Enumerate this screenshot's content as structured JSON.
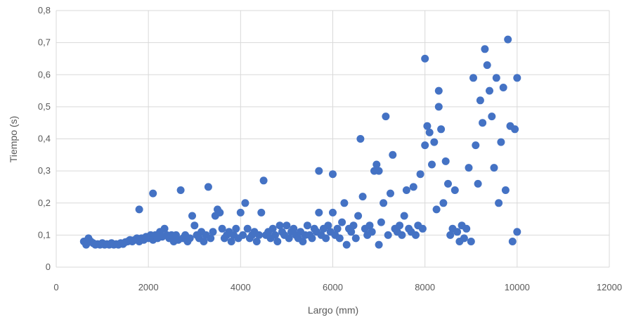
{
  "chart_data": {
    "type": "scatter",
    "title": "",
    "xlabel": "Largo (mm)",
    "ylabel": "Tiempo (s)",
    "xlim": [
      0,
      12000
    ],
    "ylim": [
      0,
      0.8
    ],
    "x_ticks": [
      "0",
      "2000",
      "4000",
      "6000",
      "8000",
      "10000",
      "12000"
    ],
    "y_ticks": [
      "0",
      "0,1",
      "0,2",
      "0,3",
      "0,4",
      "0,5",
      "0,6",
      "0,7",
      "0,8"
    ],
    "grid": "vertical-and-horizontal",
    "legend": "none",
    "marker_color": "#4472c4",
    "series": [
      {
        "points": [
          [
            600,
            0.08
          ],
          [
            650,
            0.07
          ],
          [
            700,
            0.09
          ],
          [
            750,
            0.08
          ],
          [
            800,
            0.075
          ],
          [
            850,
            0.07
          ],
          [
            900,
            0.072
          ],
          [
            950,
            0.07
          ],
          [
            1000,
            0.075
          ],
          [
            1050,
            0.07
          ],
          [
            1100,
            0.072
          ],
          [
            1150,
            0.07
          ],
          [
            1200,
            0.075
          ],
          [
            1250,
            0.07
          ],
          [
            1300,
            0.072
          ],
          [
            1350,
            0.07
          ],
          [
            1400,
            0.075
          ],
          [
            1450,
            0.072
          ],
          [
            1500,
            0.078
          ],
          [
            1550,
            0.08
          ],
          [
            1600,
            0.085
          ],
          [
            1650,
            0.08
          ],
          [
            1700,
            0.085
          ],
          [
            1750,
            0.09
          ],
          [
            1800,
            0.08
          ],
          [
            1800,
            0.18
          ],
          [
            1850,
            0.09
          ],
          [
            1900,
            0.085
          ],
          [
            1950,
            0.095
          ],
          [
            2000,
            0.09
          ],
          [
            2050,
            0.1
          ],
          [
            2100,
            0.085
          ],
          [
            2100,
            0.23
          ],
          [
            2150,
            0.1
          ],
          [
            2200,
            0.09
          ],
          [
            2250,
            0.11
          ],
          [
            2300,
            0.095
          ],
          [
            2350,
            0.12
          ],
          [
            2400,
            0.1
          ],
          [
            2450,
            0.09
          ],
          [
            2500,
            0.1
          ],
          [
            2550,
            0.08
          ],
          [
            2600,
            0.1
          ],
          [
            2650,
            0.085
          ],
          [
            2700,
            0.24
          ],
          [
            2750,
            0.09
          ],
          [
            2800,
            0.1
          ],
          [
            2850,
            0.08
          ],
          [
            2900,
            0.09
          ],
          [
            2950,
            0.16
          ],
          [
            3000,
            0.13
          ],
          [
            3050,
            0.1
          ],
          [
            3100,
            0.09
          ],
          [
            3150,
            0.11
          ],
          [
            3200,
            0.08
          ],
          [
            3250,
            0.1
          ],
          [
            3300,
            0.25
          ],
          [
            3350,
            0.09
          ],
          [
            3400,
            0.11
          ],
          [
            3450,
            0.16
          ],
          [
            3500,
            0.18
          ],
          [
            3550,
            0.17
          ],
          [
            3600,
            0.12
          ],
          [
            3650,
            0.09
          ],
          [
            3700,
            0.1
          ],
          [
            3750,
            0.11
          ],
          [
            3800,
            0.08
          ],
          [
            3850,
            0.1
          ],
          [
            3900,
            0.12
          ],
          [
            3950,
            0.09
          ],
          [
            4000,
            0.17
          ],
          [
            4050,
            0.1
          ],
          [
            4100,
            0.2
          ],
          [
            4150,
            0.12
          ],
          [
            4200,
            0.09
          ],
          [
            4250,
            0.1
          ],
          [
            4300,
            0.11
          ],
          [
            4350,
            0.08
          ],
          [
            4400,
            0.1
          ],
          [
            4450,
            0.17
          ],
          [
            4500,
            0.27
          ],
          [
            4550,
            0.1
          ],
          [
            4600,
            0.11
          ],
          [
            4650,
            0.09
          ],
          [
            4700,
            0.12
          ],
          [
            4750,
            0.1
          ],
          [
            4800,
            0.08
          ],
          [
            4850,
            0.13
          ],
          [
            4900,
            0.11
          ],
          [
            4950,
            0.1
          ],
          [
            5000,
            0.13
          ],
          [
            5050,
            0.09
          ],
          [
            5100,
            0.11
          ],
          [
            5150,
            0.12
          ],
          [
            5200,
            0.1
          ],
          [
            5250,
            0.09
          ],
          [
            5300,
            0.11
          ],
          [
            5350,
            0.08
          ],
          [
            5400,
            0.1
          ],
          [
            5450,
            0.13
          ],
          [
            5500,
            0.1
          ],
          [
            5550,
            0.09
          ],
          [
            5600,
            0.12
          ],
          [
            5650,
            0.11
          ],
          [
            5700,
            0.3
          ],
          [
            5700,
            0.17
          ],
          [
            5750,
            0.1
          ],
          [
            5800,
            0.12
          ],
          [
            5850,
            0.09
          ],
          [
            5900,
            0.13
          ],
          [
            5950,
            0.11
          ],
          [
            6000,
            0.17
          ],
          [
            6000,
            0.29
          ],
          [
            6050,
            0.1
          ],
          [
            6100,
            0.12
          ],
          [
            6150,
            0.09
          ],
          [
            6200,
            0.14
          ],
          [
            6250,
            0.2
          ],
          [
            6300,
            0.07
          ],
          [
            6350,
            0.12
          ],
          [
            6400,
            0.11
          ],
          [
            6450,
            0.13
          ],
          [
            6500,
            0.09
          ],
          [
            6550,
            0.16
          ],
          [
            6600,
            0.4
          ],
          [
            6650,
            0.22
          ],
          [
            6700,
            0.12
          ],
          [
            6750,
            0.1
          ],
          [
            6800,
            0.13
          ],
          [
            6850,
            0.11
          ],
          [
            6900,
            0.3
          ],
          [
            6950,
            0.32
          ],
          [
            7000,
            0.07
          ],
          [
            7000,
            0.3
          ],
          [
            7050,
            0.14
          ],
          [
            7100,
            0.2
          ],
          [
            7150,
            0.47
          ],
          [
            7200,
            0.1
          ],
          [
            7250,
            0.23
          ],
          [
            7300,
            0.35
          ],
          [
            7350,
            0.12
          ],
          [
            7400,
            0.11
          ],
          [
            7450,
            0.13
          ],
          [
            7500,
            0.1
          ],
          [
            7550,
            0.16
          ],
          [
            7600,
            0.24
          ],
          [
            7650,
            0.12
          ],
          [
            7700,
            0.11
          ],
          [
            7750,
            0.25
          ],
          [
            7800,
            0.1
          ],
          [
            7850,
            0.13
          ],
          [
            7900,
            0.29
          ],
          [
            7950,
            0.12
          ],
          [
            8000,
            0.65
          ],
          [
            8000,
            0.38
          ],
          [
            8050,
            0.44
          ],
          [
            8100,
            0.42
          ],
          [
            8150,
            0.32
          ],
          [
            8200,
            0.39
          ],
          [
            8250,
            0.18
          ],
          [
            8300,
            0.55
          ],
          [
            8300,
            0.5
          ],
          [
            8350,
            0.43
          ],
          [
            8400,
            0.2
          ],
          [
            8450,
            0.33
          ],
          [
            8500,
            0.26
          ],
          [
            8550,
            0.1
          ],
          [
            8600,
            0.12
          ],
          [
            8650,
            0.24
          ],
          [
            8700,
            0.11
          ],
          [
            8750,
            0.08
          ],
          [
            8800,
            0.13
          ],
          [
            8850,
            0.09
          ],
          [
            8900,
            0.12
          ],
          [
            8950,
            0.31
          ],
          [
            9000,
            0.08
          ],
          [
            9050,
            0.59
          ],
          [
            9100,
            0.38
          ],
          [
            9150,
            0.26
          ],
          [
            9200,
            0.52
          ],
          [
            9250,
            0.45
          ],
          [
            9300,
            0.68
          ],
          [
            9350,
            0.63
          ],
          [
            9400,
            0.55
          ],
          [
            9450,
            0.47
          ],
          [
            9500,
            0.31
          ],
          [
            9550,
            0.59
          ],
          [
            9600,
            0.2
          ],
          [
            9650,
            0.39
          ],
          [
            9700,
            0.56
          ],
          [
            9750,
            0.24
          ],
          [
            9800,
            0.71
          ],
          [
            9850,
            0.44
          ],
          [
            9900,
            0.08
          ],
          [
            9950,
            0.43
          ],
          [
            10000,
            0.59
          ],
          [
            10000,
            0.11
          ]
        ]
      }
    ]
  }
}
